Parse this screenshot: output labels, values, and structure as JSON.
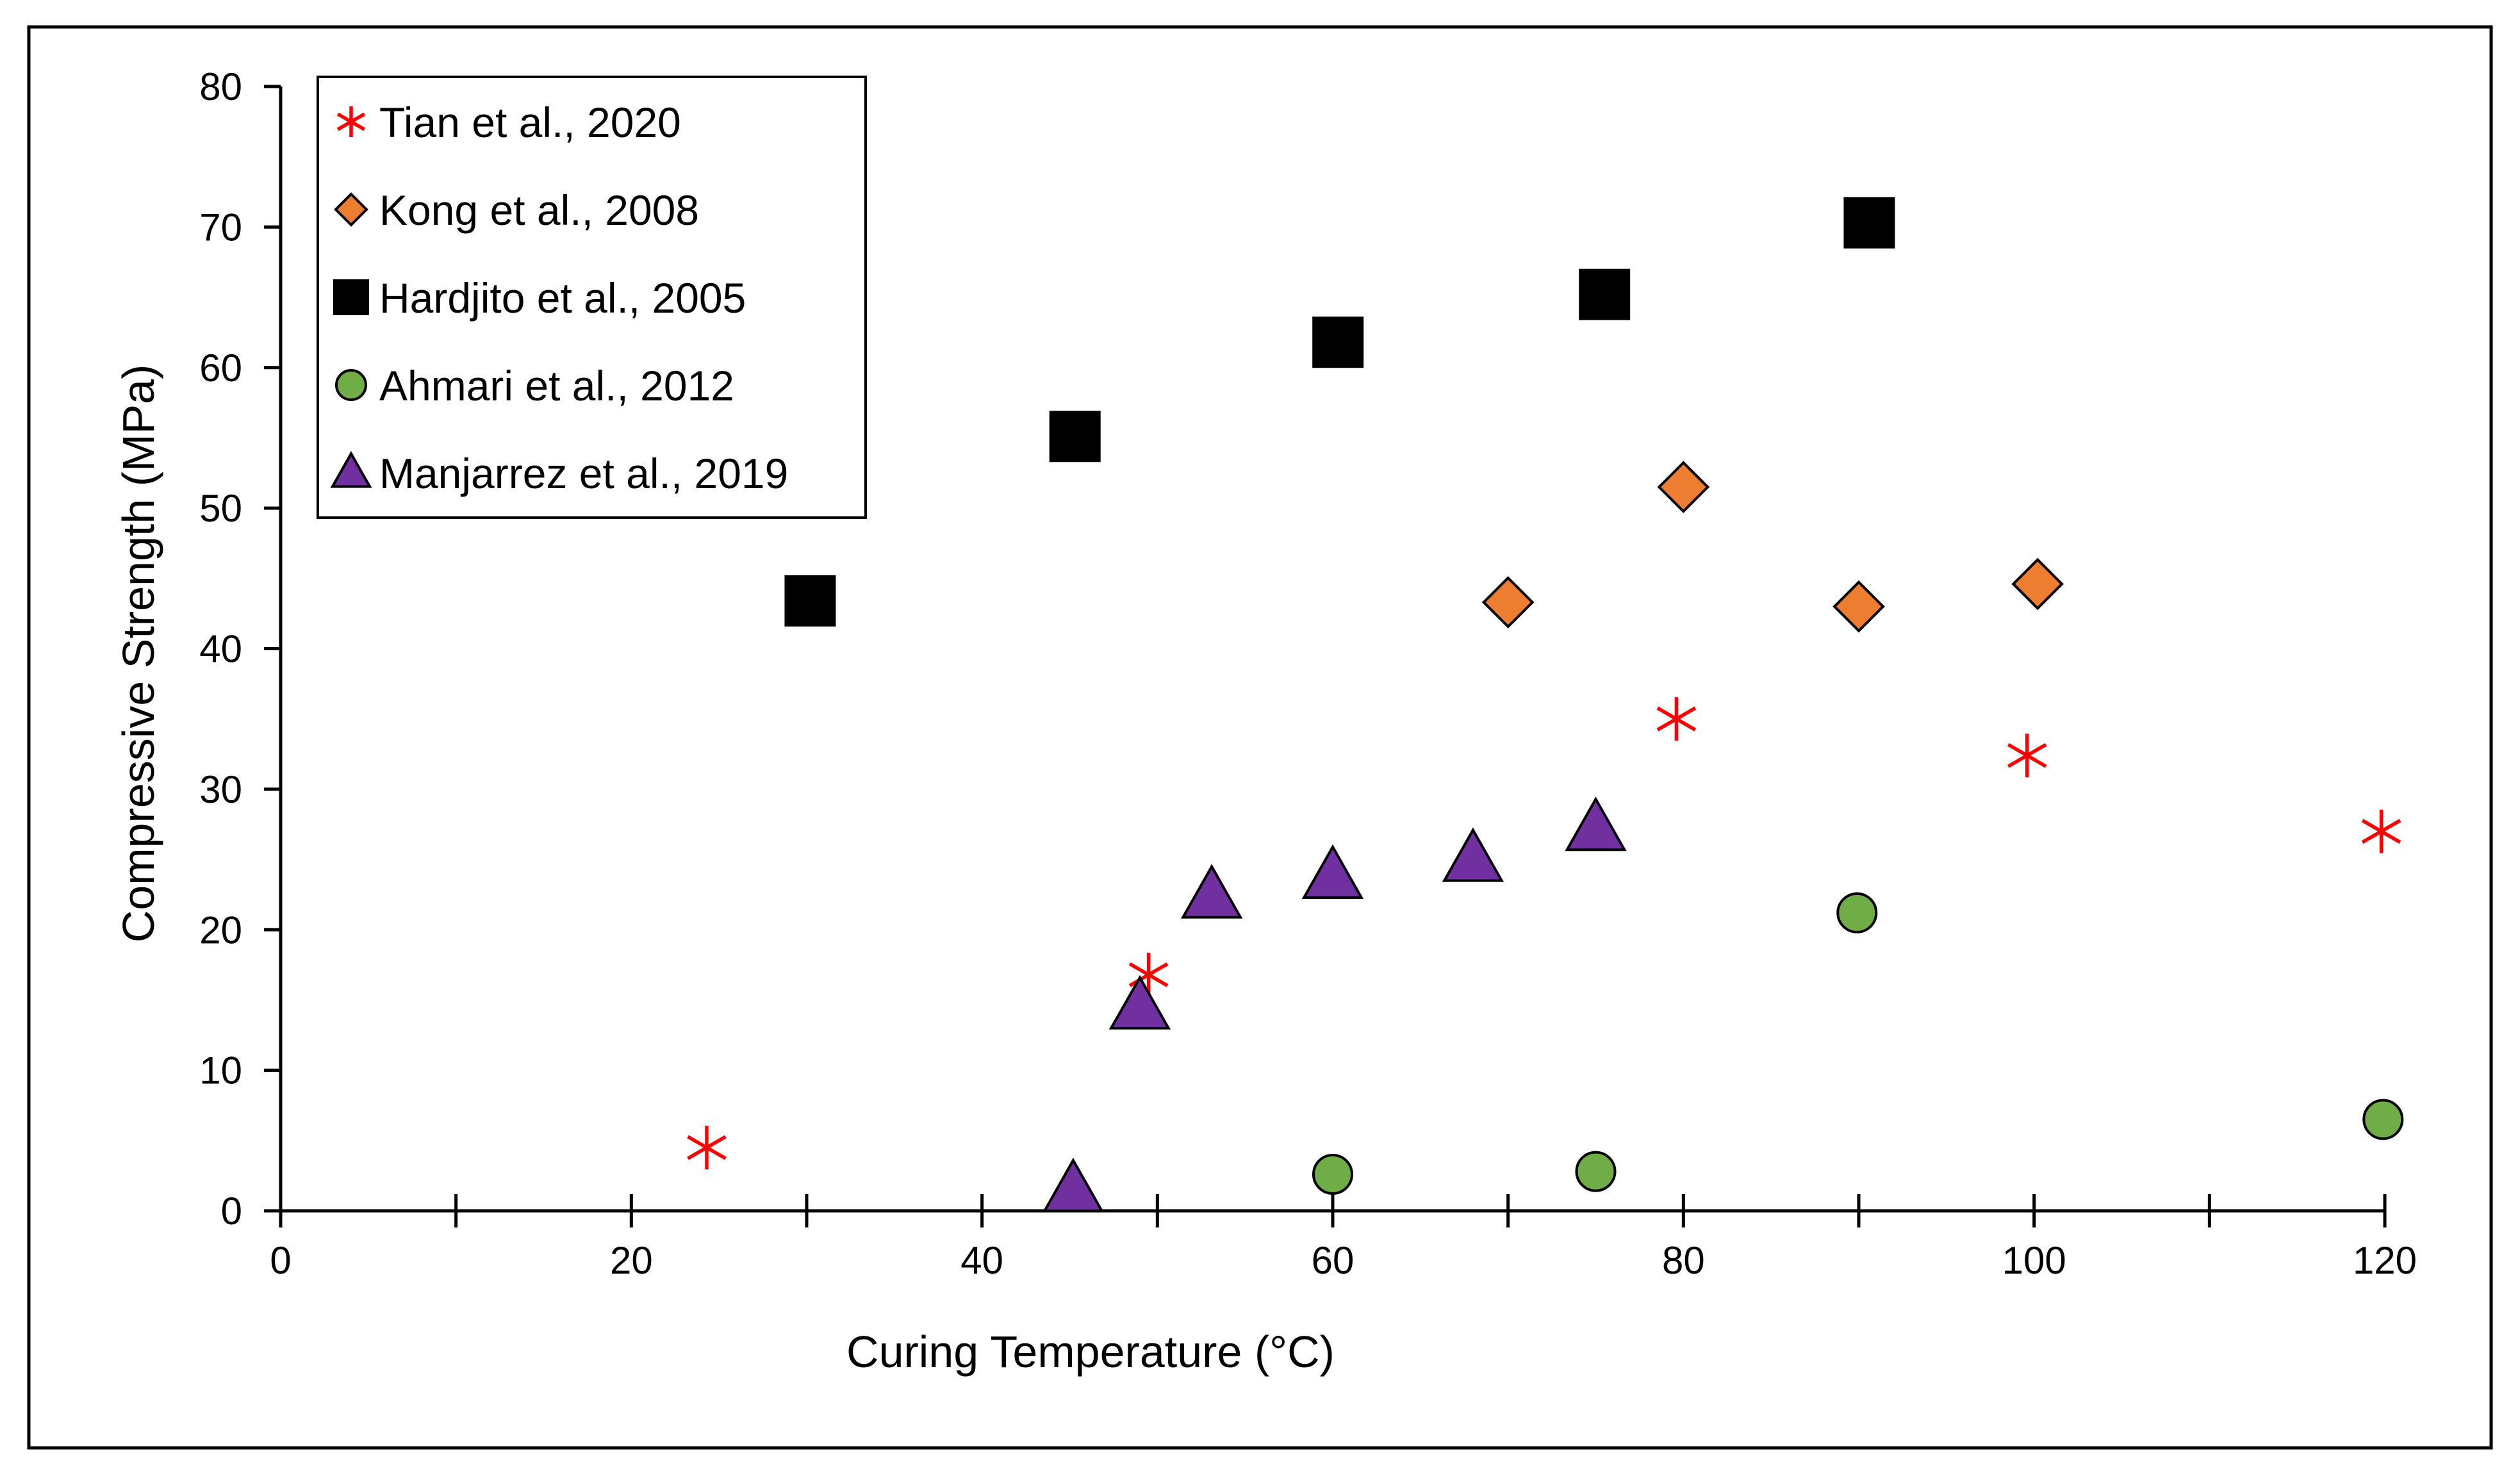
{
  "chart_data": {
    "type": "scatter",
    "title": "",
    "xlabel": "Curing Temperature (°C)",
    "ylabel": "Compressive Strength (MPa)",
    "xlim": [
      0,
      120
    ],
    "ylim": [
      0,
      80
    ],
    "x_ticks": [
      0,
      20,
      40,
      60,
      80,
      100,
      120
    ],
    "x_minor_ticks": [
      10,
      30,
      50,
      70,
      90,
      110
    ],
    "y_ticks": [
      0,
      10,
      20,
      30,
      40,
      50,
      60,
      70,
      80
    ],
    "grid": false,
    "legend_position": "top-left",
    "series": [
      {
        "name": "Tian et al., 2020",
        "marker": "asterisk",
        "color": "#ff0000",
        "x": [
          24.3,
          49.5,
          79.6,
          99.6,
          119.8
        ],
        "y": [
          4.5,
          16.8,
          35.0,
          32.4,
          27.0
        ]
      },
      {
        "name": "Kong et al., 2008",
        "marker": "diamond",
        "color": "#ed7d31",
        "x": [
          70.0,
          80.0,
          90.0,
          100.2
        ],
        "y": [
          43.3,
          51.5,
          43.0,
          44.6
        ]
      },
      {
        "name": "Hardjito et al., 2005",
        "marker": "square",
        "color": "#000000",
        "x": [
          30.2,
          45.3,
          60.3,
          75.5,
          90.6
        ],
        "y": [
          43.4,
          55.1,
          61.8,
          65.2,
          70.3
        ]
      },
      {
        "name": "Ahmari et al., 2012",
        "marker": "circle",
        "color": "#70ad47",
        "x": [
          60.0,
          75.0,
          89.9,
          119.9
        ],
        "y": [
          2.6,
          2.8,
          21.2,
          6.5
        ]
      },
      {
        "name": "Manjarrez et al., 2019",
        "marker": "triangle",
        "color": "#7030a0",
        "x": [
          45.2,
          49.0,
          53.1,
          60.0,
          68.0,
          75.0
        ],
        "y": [
          1.5,
          14.5,
          22.4,
          23.8,
          25.0,
          27.2
        ]
      }
    ]
  }
}
